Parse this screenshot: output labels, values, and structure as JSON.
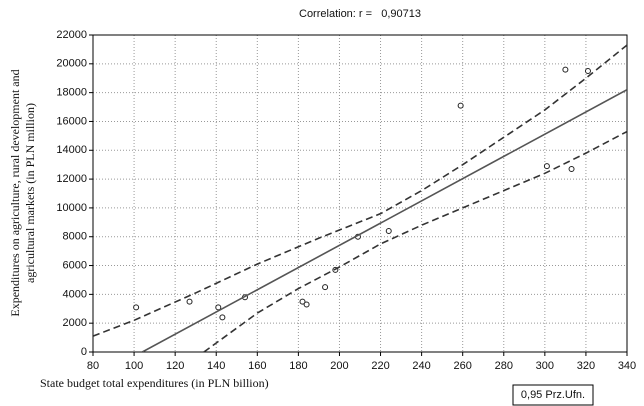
{
  "chart_data": {
    "type": "scatter",
    "title": "Correlation: r =   0,90713",
    "xlabel": "State budget total expenditures (in PLN billion)",
    "ylabel": [
      "Expenditures on agriculture, rural development and",
      "agricultural markets (in PLN million)"
    ],
    "xlim": [
      80,
      340
    ],
    "ylim": [
      0,
      22000
    ],
    "xticks": [
      80,
      100,
      120,
      140,
      160,
      180,
      200,
      220,
      240,
      260,
      280,
      300,
      320,
      340
    ],
    "yticks": [
      0,
      2000,
      4000,
      6000,
      8000,
      10000,
      12000,
      14000,
      16000,
      18000,
      20000,
      22000
    ],
    "grid": true,
    "legend": "lower-right",
    "series": [
      {
        "style": "points",
        "color": "#222",
        "x": [
          101,
          127,
          141,
          143,
          154,
          182,
          184,
          193,
          198,
          209,
          224,
          259,
          301,
          310,
          313,
          321
        ],
        "values": [
          3100,
          3500,
          3100,
          2400,
          3800,
          3500,
          3300,
          4500,
          5700,
          8000,
          8400,
          17100,
          12900,
          19600,
          12700,
          19500
        ]
      },
      {
        "style": "solid",
        "color": "#555",
        "x": [
          104,
          340
        ],
        "values": [
          0,
          18200
        ]
      },
      {
        "name": "0,95 Prz.Ufn.",
        "style": "dashed",
        "color": "#333",
        "x": [
          80,
          100,
          130,
          160,
          190,
          220,
          240,
          260,
          280,
          300,
          320,
          340
        ],
        "values": [
          1100,
          2200,
          4100,
          6100,
          7900,
          9600,
          11200,
          13000,
          14900,
          16800,
          19000,
          21300
        ]
      },
      {
        "style": "dashed",
        "color": "#333",
        "x": [
          134,
          160,
          180,
          200,
          220,
          240,
          260,
          280,
          300,
          320,
          340
        ],
        "values": [
          0,
          2700,
          4400,
          5900,
          7500,
          8800,
          10000,
          11200,
          12400,
          13800,
          15300
        ]
      }
    ]
  }
}
